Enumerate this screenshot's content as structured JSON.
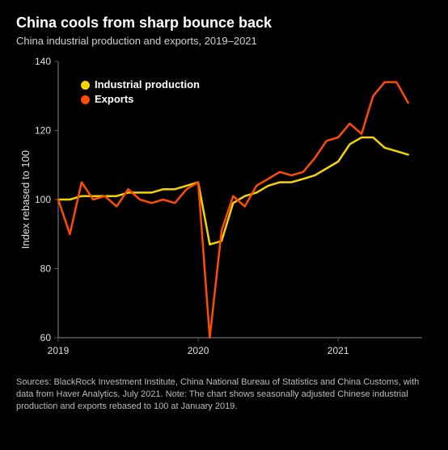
{
  "title": "China cools from sharp bounce back",
  "subtitle": "China industrial production and exports, 2019–2021",
  "source": "Sources: BlackRock Investment Institute, China National Bureau of Statistics and China Customs, with data from Haver Analytics, July 2021. Note: The chart shows seasonally adjusted Chinese industrial production and exports rebased to 100 at January 2019.",
  "chart": {
    "type": "line",
    "background_color": "#000000",
    "grid_color": "#555555",
    "axis_color": "#888888",
    "text_color": "#e0e0e0",
    "title_fontsize": 18,
    "subtitle_fontsize": 13,
    "label_fontsize": 12,
    "ylabel": "Index rebased to 100",
    "ylim": [
      60,
      140
    ],
    "ytick_step": 20,
    "yticks": [
      60,
      80,
      100,
      120,
      140
    ],
    "x_start": 2019.0,
    "x_end": 2021.6,
    "xticks": [
      2019,
      2020,
      2021
    ],
    "xtick_labels": [
      "2019",
      "2020",
      "2021"
    ],
    "line_width": 2.5,
    "legend": {
      "position": "top-left-inset",
      "items": [
        {
          "label": "Industrial production",
          "color": "#f5d400"
        },
        {
          "label": "Exports",
          "color": "#ff4d00"
        }
      ]
    },
    "series": [
      {
        "name": "Industrial production",
        "color": "#f5d400",
        "x": [
          2019.0,
          2019.083,
          2019.167,
          2019.25,
          2019.333,
          2019.417,
          2019.5,
          2019.583,
          2019.667,
          2019.75,
          2019.833,
          2019.917,
          2020.0,
          2020.083,
          2020.167,
          2020.25,
          2020.333,
          2020.417,
          2020.5,
          2020.583,
          2020.667,
          2020.75,
          2020.833,
          2020.917,
          2021.0,
          2021.083,
          2021.167,
          2021.25,
          2021.333,
          2021.417,
          2021.5
        ],
        "y": [
          100,
          100,
          101,
          101,
          101,
          101,
          102,
          102,
          102,
          103,
          103,
          104,
          105,
          87,
          88,
          99,
          101,
          102,
          104,
          105,
          105,
          106,
          107,
          109,
          111,
          116,
          118,
          118,
          115,
          114,
          113
        ]
      },
      {
        "name": "Exports",
        "color": "#ff4d00",
        "x": [
          2019.0,
          2019.083,
          2019.167,
          2019.25,
          2019.333,
          2019.417,
          2019.5,
          2019.583,
          2019.667,
          2019.75,
          2019.833,
          2019.917,
          2020.0,
          2020.083,
          2020.167,
          2020.25,
          2020.333,
          2020.417,
          2020.5,
          2020.583,
          2020.667,
          2020.75,
          2020.833,
          2020.917,
          2021.0,
          2021.083,
          2021.167,
          2021.25,
          2021.333,
          2021.417,
          2021.5
        ],
        "y": [
          100,
          90,
          105,
          100,
          101,
          98,
          103,
          100,
          99,
          100,
          99,
          103,
          105,
          60,
          91,
          101,
          98,
          104,
          106,
          108,
          107,
          108,
          112,
          117,
          118,
          122,
          119,
          130,
          134,
          134,
          128
        ]
      }
    ]
  }
}
